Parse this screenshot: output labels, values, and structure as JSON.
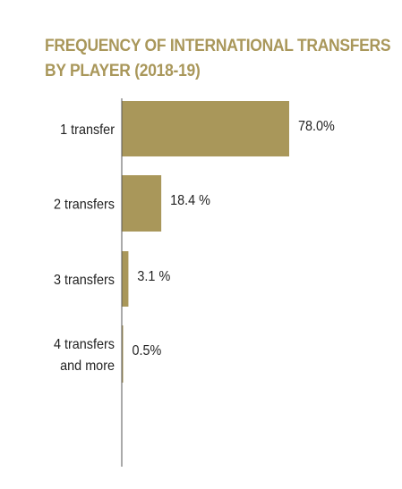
{
  "title_lines": [
    "FREQUENCY OF INTERNATIONAL TRANSFERS",
    "BY PLAYER (2018-19)"
  ],
  "colors": {
    "title": "#a9975a",
    "bar": "#a9975a",
    "axis": "#555555",
    "text": "#222222"
  },
  "chart_data": {
    "type": "bar",
    "orientation": "horizontal",
    "title": "FREQUENCY OF INTERNATIONAL TRANSFERS BY PLAYER (2018-19)",
    "categories": [
      [
        "1 transfer"
      ],
      [
        "2 transfers"
      ],
      [
        "3 transfers"
      ],
      [
        "4 transfers",
        "and more"
      ]
    ],
    "values": [
      78.0,
      18.4,
      3.1,
      0.5
    ],
    "value_labels": [
      "78.0%",
      "18.4 %",
      "3.1 %",
      "0.5%"
    ],
    "unit": "%",
    "xlim": [
      0,
      100
    ],
    "grid": false,
    "legend": "none"
  }
}
